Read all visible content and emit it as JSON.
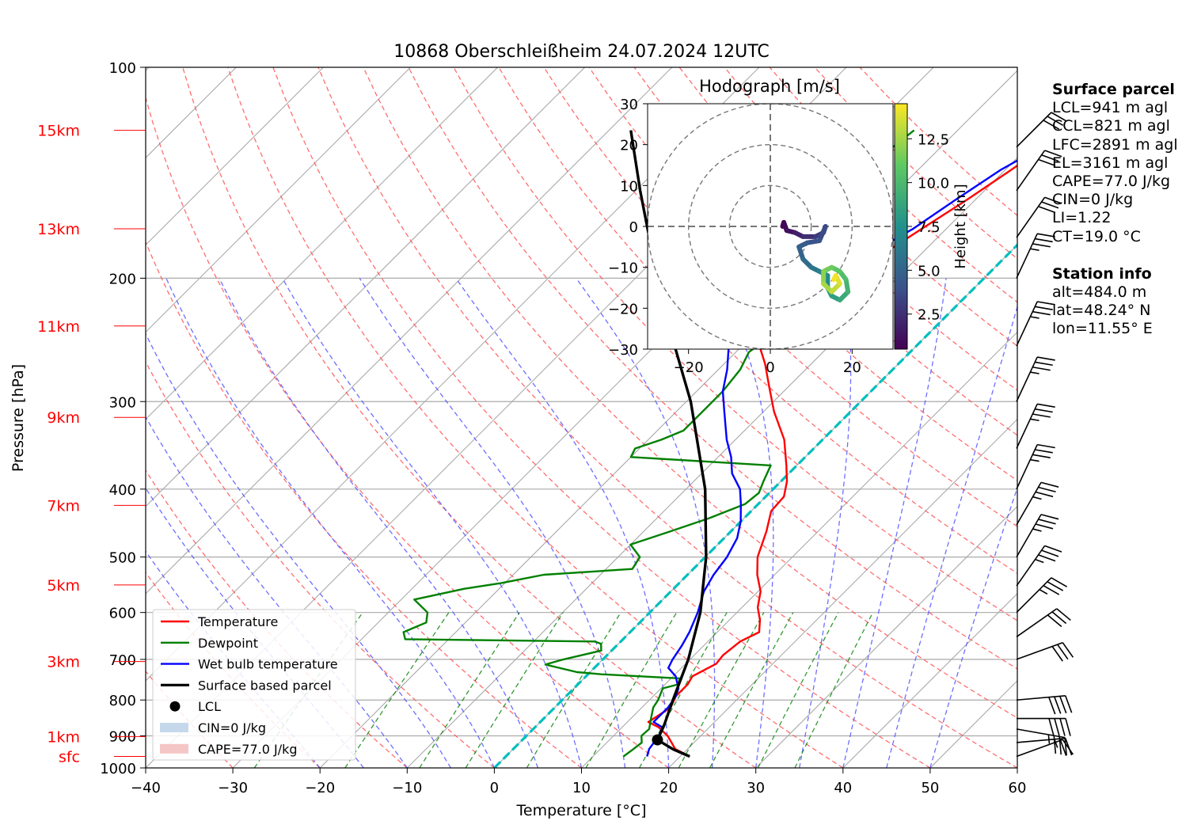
{
  "title": "10868 Oberschleißheim 24.07.2024 12UTC",
  "chart_data": [
    {
      "type": "line",
      "subtype": "skew-T log-p",
      "title": "10868 Oberschleißheim 24.07.2024 12UTC",
      "xlabel": "Temperature [°C]",
      "ylabel": "Pressure [hPa]",
      "xlim": [
        -40,
        60
      ],
      "ylim": [
        1000,
        100
      ],
      "yscale": "log",
      "xticks": [
        -40,
        -30,
        -20,
        -10,
        0,
        10,
        20,
        30,
        40,
        50,
        60
      ],
      "yticks": [
        100,
        200,
        300,
        400,
        500,
        600,
        700,
        800,
        900,
        1000
      ],
      "height_labels": [
        {
          "label": "sfc",
          "p": 963
        },
        {
          "label": "1km",
          "p": 902
        },
        {
          "label": "3km",
          "p": 705
        },
        {
          "label": "5km",
          "p": 548
        },
        {
          "label": "7km",
          "p": 422
        },
        {
          "label": "9km",
          "p": 316
        },
        {
          "label": "11km",
          "p": 234
        },
        {
          "label": "13km",
          "p": 170
        },
        {
          "label": "15km",
          "p": 123
        }
      ],
      "legend_position": "lower-left",
      "legend": [
        {
          "label": "Temperature",
          "color": "#ff0000",
          "kind": "line"
        },
        {
          "label": "Dewpoint",
          "color": "#008000",
          "kind": "line"
        },
        {
          "label": "Wet bulb temperature",
          "color": "#0000ff",
          "kind": "line"
        },
        {
          "label": "Surface based parcel",
          "color": "#000000",
          "kind": "line"
        },
        {
          "label": "LCL",
          "color": "#000000",
          "kind": "dot"
        },
        {
          "label": "CIN=0 J/kg",
          "color": "#c6d9ec",
          "kind": "patch"
        },
        {
          "label": "CAPE=77.0 J/kg",
          "color": "#f5c6c6",
          "kind": "patch"
        }
      ],
      "series": [
        {
          "name": "Temperature",
          "color": "#ff0000",
          "points": [
            [
              963,
              21.1
            ],
            [
              940,
              18.6
            ],
            [
              900,
              16.2
            ],
            [
              875,
              14.2
            ],
            [
              860,
              12.4
            ],
            [
              820,
              13.3
            ],
            [
              790,
              12.6
            ],
            [
              760,
              12.6
            ],
            [
              740,
              12.2
            ],
            [
              710,
              13.5
            ],
            [
              690,
              13.3
            ],
            [
              660,
              13.7
            ],
            [
              640,
              14.8
            ],
            [
              615,
              13.5
            ],
            [
              590,
              11.8
            ],
            [
              560,
              10.3
            ],
            [
              530,
              8.0
            ],
            [
              500,
              6.0
            ],
            [
              460,
              4.1
            ],
            [
              430,
              2.3
            ],
            [
              410,
              2.1
            ],
            [
              390,
              0.7
            ],
            [
              370,
              -1.2
            ],
            [
              340,
              -4.4
            ],
            [
              310,
              -8.8
            ],
            [
              285,
              -12.3
            ],
            [
              265,
              -15.3
            ],
            [
              245,
              -18.9
            ],
            [
              228,
              -22.0
            ],
            [
              220,
              -23.2
            ],
            [
              215,
              -21.6
            ],
            [
              208,
              -19.6
            ],
            [
              198,
              -17.5
            ],
            [
              185,
              -14.4
            ],
            [
              170,
              -12.8
            ],
            [
              155,
              -11.0
            ],
            [
              140,
              -9.3
            ],
            [
              130,
              -8.2
            ],
            [
              123,
              -7.1
            ]
          ]
        },
        {
          "name": "Dewpoint",
          "color": "#008000",
          "points": [
            [
              963,
              13.5
            ],
            [
              940,
              13.8
            ],
            [
              920,
              14.0
            ],
            [
              900,
              13.2
            ],
            [
              880,
              13.3
            ],
            [
              850,
              12.3
            ],
            [
              820,
              11.3
            ],
            [
              800,
              11.0
            ],
            [
              770,
              10.2
            ],
            [
              760,
              11.5
            ],
            [
              745,
              11.0
            ],
            [
              735,
              1.5
            ],
            [
              730,
              -1.5
            ],
            [
              712,
              -6.0
            ],
            [
              700,
              -4.5
            ],
            [
              680,
              -1.2
            ],
            [
              665,
              -2.0
            ],
            [
              660,
              -3.0
            ],
            [
              655,
              -25.0
            ],
            [
              640,
              -26.0
            ],
            [
              620,
              -24.5
            ],
            [
              600,
              -25.5
            ],
            [
              575,
              -28.5
            ],
            [
              555,
              -24.0
            ],
            [
              545,
              -20.5
            ],
            [
              530,
              -16.5
            ],
            [
              520,
              -7.0
            ],
            [
              500,
              -7.5
            ],
            [
              480,
              -10.0
            ],
            [
              460,
              -7.0
            ],
            [
              440,
              -4.0
            ],
            [
              420,
              -1.5
            ],
            [
              405,
              -1.2
            ],
            [
              390,
              -2.0
            ],
            [
              370,
              -3.0
            ],
            [
              360,
              -20.0
            ],
            [
              350,
              -20.5
            ],
            [
              340,
              -18.5
            ],
            [
              330,
              -17.0
            ],
            [
              310,
              -17.0
            ],
            [
              290,
              -17.0
            ],
            [
              270,
              -17.5
            ],
            [
              255,
              -18.5
            ],
            [
              245,
              -18.0
            ],
            [
              235,
              -20.0
            ],
            [
              225,
              -22.0
            ],
            [
              215,
              -24.0
            ],
            [
              200,
              -26.0
            ],
            [
              195,
              -27.5
            ],
            [
              185,
              -29.5
            ],
            [
              180,
              -30.5
            ],
            [
              175,
              -30.0
            ],
            [
              170,
              -30.0
            ],
            [
              160,
              -29.0
            ],
            [
              150,
              -28.5
            ],
            [
              140,
              -27.0
            ],
            [
              130,
              -25.5
            ],
            [
              123,
              -25.0
            ]
          ]
        },
        {
          "name": "Wet bulb temperature",
          "color": "#0000ff",
          "points": [
            [
              963,
              16.2
            ],
            [
              940,
              15.6
            ],
            [
              900,
              15.2
            ],
            [
              875,
              14.6
            ],
            [
              860,
              13.0
            ],
            [
              820,
              13.0
            ],
            [
              790,
              12.6
            ],
            [
              770,
              12.0
            ],
            [
              740,
              10.3
            ],
            [
              720,
              8.5
            ],
            [
              700,
              8.0
            ],
            [
              670,
              7.5
            ],
            [
              640,
              6.8
            ],
            [
              600,
              5.5
            ],
            [
              560,
              3.8
            ],
            [
              530,
              3.0
            ],
            [
              500,
              2.5
            ],
            [
              470,
              1.5
            ],
            [
              445,
              0.0
            ],
            [
              420,
              -2.0
            ],
            [
              400,
              -3.8
            ],
            [
              380,
              -6.5
            ],
            [
              360,
              -8.5
            ],
            [
              340,
              -11.0
            ],
            [
              310,
              -14.5
            ],
            [
              290,
              -17.0
            ],
            [
              270,
              -19.0
            ],
            [
              250,
              -21.5
            ],
            [
              232,
              -23.8
            ],
            [
              222,
              -24.5
            ],
            [
              215,
              -23.0
            ],
            [
              205,
              -21.5
            ],
            [
              195,
              -19.0
            ],
            [
              185,
              -16.0
            ],
            [
              170,
              -13.8
            ],
            [
              155,
              -12.3
            ],
            [
              140,
              -10.5
            ],
            [
              130,
              -8.5
            ],
            [
              123,
              -7.5
            ]
          ]
        },
        {
          "name": "Surface based parcel",
          "color": "#000000",
          "points": [
            [
              963,
              21.1
            ],
            [
              941,
              18.4
            ],
            [
              912,
              15.5
            ],
            [
              870,
              14.6
            ],
            [
              800,
              12.7
            ],
            [
              700,
              9.8
            ],
            [
              600,
              5.8
            ],
            [
              500,
              0.1
            ],
            [
              400,
              -7.8
            ],
            [
              300,
              -19.5
            ],
            [
              250,
              -27.7
            ],
            [
              200,
              -37.5
            ],
            [
              150,
              -49.5
            ],
            [
              123,
              -57.5
            ]
          ]
        }
      ],
      "lcl": {
        "p": 912,
        "t": 15.5
      },
      "freezing_line_color": "#00bfbf",
      "isotherm_color": "#aaaaaa",
      "dry_adiabat_color": "#ff5555",
      "moist_adiabat_color": "#5555ff",
      "mixing_ratio_color": "#008000",
      "wind_barbs": [
        {
          "p": 963,
          "speed_kt": 10,
          "dir": 250
        },
        {
          "p": 920,
          "speed_kt": 25,
          "dir": 265
        },
        {
          "p": 880,
          "speed_kt": 35,
          "dir": 280
        },
        {
          "p": 850,
          "speed_kt": 40,
          "dir": 270
        },
        {
          "p": 800,
          "speed_kt": 40,
          "dir": 265
        },
        {
          "p": 700,
          "speed_kt": 30,
          "dir": 250
        },
        {
          "p": 650,
          "speed_kt": 30,
          "dir": 235
        },
        {
          "p": 600,
          "speed_kt": 35,
          "dir": 225
        },
        {
          "p": 550,
          "speed_kt": 35,
          "dir": 215
        },
        {
          "p": 500,
          "speed_kt": 35,
          "dir": 210
        },
        {
          "p": 450,
          "speed_kt": 35,
          "dir": 210
        },
        {
          "p": 400,
          "speed_kt": 35,
          "dir": 205
        },
        {
          "p": 350,
          "speed_kt": 35,
          "dir": 205
        },
        {
          "p": 300,
          "speed_kt": 35,
          "dir": 205
        },
        {
          "p": 250,
          "speed_kt": 35,
          "dir": 205
        },
        {
          "p": 200,
          "speed_kt": 35,
          "dir": 205
        },
        {
          "p": 175,
          "speed_kt": 30,
          "dir": 215
        },
        {
          "p": 150,
          "speed_kt": 30,
          "dir": 215
        },
        {
          "p": 130,
          "speed_kt": 30,
          "dir": 225
        }
      ]
    },
    {
      "type": "scatter",
      "title": "Hodograph [m/s]",
      "xlim": [
        -30,
        30
      ],
      "ylim": [
        -30,
        30
      ],
      "xticks": [
        -20,
        0,
        20
      ],
      "yticks": [
        -30,
        -20,
        -10,
        0,
        10,
        20,
        30
      ],
      "rings": [
        10,
        20,
        30
      ],
      "colorbar": {
        "label": "Height [km]",
        "ticks": [
          2.5,
          5.0,
          7.5,
          10.0,
          12.5
        ],
        "range": [
          0.5,
          14.5
        ],
        "colormap": "viridis"
      },
      "points": [
        [
          3,
          0,
          0.5
        ],
        [
          3.3,
          1,
          0.8
        ],
        [
          4,
          -1,
          1.2
        ],
        [
          6,
          -1.5,
          1.8
        ],
        [
          8,
          -2.5,
          2.5
        ],
        [
          11,
          -2.5,
          3.0
        ],
        [
          13,
          -1.5,
          3.4
        ],
        [
          13.5,
          0,
          3.7
        ],
        [
          12,
          -3.5,
          4.1
        ],
        [
          9,
          -4,
          4.5
        ],
        [
          7,
          -5,
          4.9
        ],
        [
          8,
          -8,
          5.4
        ],
        [
          10,
          -10,
          6.0
        ],
        [
          12,
          -11,
          6.6
        ],
        [
          14,
          -12,
          7.2
        ],
        [
          14,
          -15,
          7.8
        ],
        [
          15,
          -17,
          8.4
        ],
        [
          17,
          -18,
          9.0
        ],
        [
          19,
          -16,
          9.6
        ],
        [
          18.5,
          -13,
          10.2
        ],
        [
          17,
          -11,
          10.8
        ],
        [
          15,
          -10,
          11.4
        ],
        [
          13,
          -11,
          12.0
        ],
        [
          13,
          -14,
          12.6
        ],
        [
          15,
          -16,
          13.2
        ],
        [
          17,
          -14,
          13.8
        ],
        [
          16,
          -12,
          14.3
        ],
        [
          15.5,
          -13,
          14.5
        ]
      ]
    }
  ],
  "side_panel": {
    "parcel_header": "Surface parcel",
    "parcel_lines": [
      "LCL=941 m agl",
      "CCL=821 m agl",
      "LFC=2891 m agl",
      "EL=3161 m agl",
      "CAPE=77.0 J/kg",
      "CIN=0 J/kg",
      "LI=1.22",
      "CT=19.0 °C"
    ],
    "station_header": "Station info",
    "station_lines": [
      "alt=484.0 m",
      "lat=48.24° N",
      "lon=11.55° E"
    ]
  }
}
